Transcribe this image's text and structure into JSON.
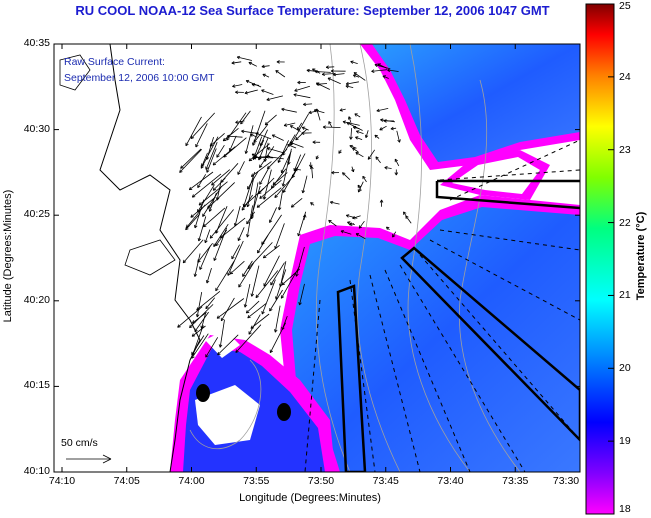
{
  "title": "RU COOL  NOAA-12  Sea Surface Temperature:  September 12, 2006 1047 GMT",
  "annotation": {
    "line1": "Raw Surface Current:",
    "line2": "September 12, 2006 10:00 GMT"
  },
  "scale_label": "50 cm/s",
  "x_axis": {
    "title": "Longitude (Degrees:Minutes)",
    "ticks": [
      "74:10",
      "74:05",
      "74:00",
      "73:55",
      "73:50",
      "73:45",
      "73:40",
      "73:35",
      "73:30"
    ]
  },
  "y_axis": {
    "title": "Latitude (Degrees:Minutes)",
    "ticks": [
      "40:35",
      "40:30",
      "40:25",
      "40:20",
      "40:15",
      "40:10"
    ]
  },
  "colorbar": {
    "title": "Temperature (°C)",
    "ticks": [
      "25",
      "24",
      "23",
      "22",
      "21",
      "20",
      "19",
      "18"
    ],
    "range": [
      18,
      25
    ],
    "colors": [
      "#ff00ff",
      "#0000ff",
      "#00ffff",
      "#00ff00",
      "#ffff00",
      "#ff8000",
      "#ff0000",
      "#800000"
    ]
  },
  "colors": {
    "land": "#ffffff",
    "cloud_mask": "#ff00ff",
    "sst_low": "#1a1aff",
    "sst_mid": "#2a8cff",
    "title": "#1c1cd0"
  }
}
